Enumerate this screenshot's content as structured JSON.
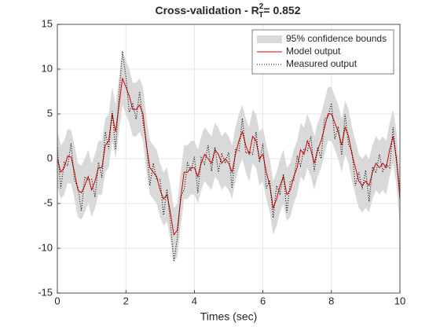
{
  "chart_data": {
    "type": "line",
    "title": {
      "text": "Cross-validation - R",
      "superscript": "2",
      "subscript": "T",
      "suffix": "= 0.852"
    },
    "x_label": "Times (sec)",
    "xlim": [
      0,
      10
    ],
    "xticks": [
      0,
      2,
      4,
      6,
      8,
      10
    ],
    "ylim": [
      -15,
      15
    ],
    "yticks": [
      -15,
      -10,
      -5,
      0,
      5,
      10,
      15
    ],
    "grid": true,
    "legend": "northeast",
    "x": [
      0,
      0.1,
      0.2,
      0.3,
      0.4,
      0.5,
      0.6,
      0.7,
      0.8,
      0.9,
      1,
      1.1,
      1.2,
      1.3,
      1.4,
      1.5,
      1.6,
      1.7,
      1.8,
      1.9,
      2,
      2.1,
      2.2,
      2.3,
      2.4,
      2.5,
      2.6,
      2.7,
      2.8,
      2.9,
      3,
      3.1,
      3.2,
      3.3,
      3.4,
      3.5,
      3.6,
      3.7,
      3.8,
      3.9,
      4,
      4.1,
      4.2,
      4.3,
      4.4,
      4.5,
      4.6,
      4.7,
      4.8,
      4.9,
      5,
      5.1,
      5.2,
      5.3,
      5.4,
      5.5,
      5.6,
      5.7,
      5.8,
      5.9,
      6,
      6.1,
      6.2,
      6.3,
      6.4,
      6.5,
      6.6,
      6.7,
      6.8,
      6.9,
      7,
      7.1,
      7.2,
      7.3,
      7.4,
      7.5,
      7.6,
      7.7,
      7.8,
      7.9,
      8,
      8.1,
      8.2,
      8.3,
      8.4,
      8.5,
      8.6,
      8.7,
      8.8,
      8.9,
      9,
      9.1,
      9.2,
      9.3,
      9.4,
      9.5,
      9.6,
      9.7,
      9.8,
      9.9,
      10
    ],
    "series": [
      {
        "name": "95% confidence bounds",
        "color": "#d9d9d9",
        "style": "band",
        "lower": [
          -3,
          -4.5,
          -4,
          -2.7,
          -2.8,
          -4.5,
          -6.5,
          -6.8,
          -6,
          -5,
          -6.5,
          -5.5,
          -4,
          -4,
          -1.5,
          -1,
          2,
          0,
          3,
          6,
          5,
          4,
          2.5,
          2.5,
          3,
          2,
          -1.5,
          -4,
          -4.5,
          -5,
          -6.5,
          -7.5,
          -7,
          -9,
          -11.5,
          -11,
          -7.5,
          -4.5,
          -4.5,
          -4,
          -4,
          -5,
          -3.5,
          -2.5,
          -3,
          -3.5,
          -2,
          -2.5,
          -3.5,
          -3,
          -3.5,
          -4.5,
          -2.5,
          -1,
          0,
          -1.5,
          -2.5,
          -0.5,
          -1,
          -3,
          -2.5,
          -4.5,
          -6,
          -8.5,
          -7.5,
          -6,
          -5,
          -7,
          -6.5,
          -5,
          -4,
          -2,
          -2.5,
          -1,
          -2,
          -3.5,
          -2,
          -1,
          0.5,
          2,
          2,
          1,
          0,
          -1.5,
          0.5,
          -0.5,
          -2.5,
          -4,
          -5.5,
          -6,
          -5.5,
          -6,
          -4.5,
          -3.5,
          -4,
          -3.5,
          -4,
          -2,
          -0.5,
          -3,
          -7.5
        ],
        "upper": [
          3,
          1.5,
          2,
          3.3,
          3.2,
          1.5,
          -0.5,
          -0.8,
          0,
          1,
          -0.5,
          0.5,
          2,
          2,
          4.5,
          5,
          8,
          6,
          9,
          12,
          11,
          10,
          8.5,
          8.5,
          9,
          8,
          4.5,
          2,
          1.5,
          1,
          -0.5,
          -1.5,
          -1,
          -3,
          -5.5,
          -5,
          -1.5,
          1.5,
          1.5,
          2,
          2,
          1,
          2.5,
          3.5,
          3,
          2.5,
          4,
          3.5,
          2.5,
          3,
          2.5,
          1.5,
          3.5,
          5,
          6,
          4.5,
          3.5,
          5.5,
          5,
          3,
          3.5,
          1.5,
          0,
          -2.5,
          -1.5,
          0,
          1,
          -1,
          -0.5,
          1,
          2,
          4,
          3.5,
          5,
          4,
          2.5,
          4,
          5,
          6.5,
          8,
          8,
          7,
          6,
          4.5,
          6.5,
          5.5,
          3.5,
          2,
          0.5,
          0,
          0.5,
          0,
          1.5,
          2.5,
          2,
          2.5,
          2,
          4,
          5.5,
          3,
          -1.5
        ]
      },
      {
        "name": "Model output",
        "color": "#d40000",
        "style": "solid",
        "values": [
          0,
          -1.5,
          -1,
          0.3,
          0.2,
          -1.5,
          -3.5,
          -3.8,
          -3,
          -2,
          -3.5,
          -2.5,
          -1,
          -1,
          1.5,
          2,
          5,
          3,
          6,
          9,
          8,
          7,
          5.5,
          5.5,
          6,
          5,
          1.5,
          -1,
          -1.5,
          -2,
          -3.5,
          -4.5,
          -4,
          -6,
          -8.5,
          -8,
          -4.5,
          -1.5,
          -1.5,
          -1,
          -1,
          -2,
          -0.5,
          0.5,
          0,
          -0.5,
          1,
          0.5,
          -0.5,
          0,
          -0.5,
          -1.5,
          0.5,
          2,
          3,
          1.5,
          0.5,
          2.5,
          2,
          0,
          0.5,
          -1.5,
          -3,
          -5.5,
          -4.5,
          -3,
          -2,
          -4,
          -3.5,
          -2,
          -1,
          1,
          0.5,
          2,
          1,
          -0.5,
          1,
          2,
          3.5,
          5,
          5,
          4,
          3,
          1.5,
          3.5,
          2.5,
          0.5,
          -1,
          -2.5,
          -3,
          -2.5,
          -3,
          -1.5,
          -0.5,
          -1,
          -0.5,
          -1,
          1,
          2.5,
          0,
          -4.5
        ]
      },
      {
        "name": "Measured output",
        "color": "#000000",
        "style": "dotted",
        "values": [
          1.2,
          -3.3,
          -0.4,
          -0.8,
          1.7,
          -2.4,
          -3.2,
          -5.8,
          -2,
          -2.4,
          -2.3,
          -4.3,
          -0.4,
          -2.1,
          3,
          1.1,
          5.3,
          1,
          7,
          12,
          9.2,
          5.2,
          6.1,
          4.4,
          7.5,
          4.1,
          1.8,
          -3,
          -0.5,
          -2.4,
          -2.3,
          -6.3,
          -3.4,
          -7.1,
          -11.5,
          -8.9,
          -4.2,
          -3.5,
          -0.5,
          -1.4,
          0.2,
          -3.8,
          0.1,
          -0.6,
          1.5,
          -1.4,
          1.3,
          -1.5,
          0.5,
          -0.4,
          0.7,
          -3.3,
          1.1,
          0.9,
          4.5,
          0.6,
          0.8,
          0.5,
          3,
          -0.4,
          1.7,
          -3.3,
          -2.4,
          -6.6,
          -3,
          -3.9,
          -1.7,
          -6,
          -2.5,
          -2.4,
          0.2,
          -0.8,
          1.1,
          0.9,
          2.5,
          -1.4,
          1.3,
          0,
          4.5,
          4.6,
          6.2,
          2.2,
          3.6,
          0.4,
          5,
          1.6,
          0.8,
          -3,
          -1.5,
          -3.4,
          -1.3,
          -4.8,
          -0.9,
          -1.6,
          0.5,
          -1.4,
          -0.7,
          -1,
          3.5,
          -0.4,
          -3.3
        ]
      }
    ]
  }
}
